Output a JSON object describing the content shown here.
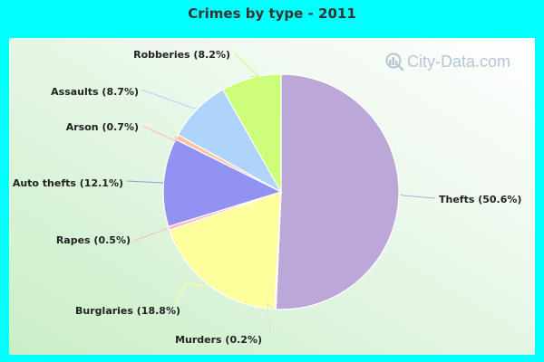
{
  "chart_data": {
    "type": "pie",
    "title": "Crimes by type - 2011",
    "slices": [
      {
        "label": "Thefts",
        "value": 50.6,
        "display": "Thefts (50.6%)",
        "color": "#bca8d8"
      },
      {
        "label": "Murders",
        "value": 0.2,
        "display": "Murders (0.2%)",
        "color": "#dceabf"
      },
      {
        "label": "Burglaries",
        "value": 18.8,
        "display": "Burglaries (18.8%)",
        "color": "#fffe9c"
      },
      {
        "label": "Rapes",
        "value": 0.5,
        "display": "Rapes (0.5%)",
        "color": "#ffb6c8"
      },
      {
        "label": "Auto thefts",
        "value": 12.1,
        "display": "Auto thefts (12.1%)",
        "color": "#9292f2"
      },
      {
        "label": "Arson",
        "value": 0.7,
        "display": "Arson (0.7%)",
        "color": "#ffc19f"
      },
      {
        "label": "Assaults",
        "value": 8.7,
        "display": "Assaults (8.7%)",
        "color": "#aed4fb"
      },
      {
        "label": "Robberies",
        "value": 8.2,
        "display": "Robberies (8.2%)",
        "color": "#ccff77"
      }
    ]
  },
  "watermark": {
    "text": "City-Data.com"
  }
}
